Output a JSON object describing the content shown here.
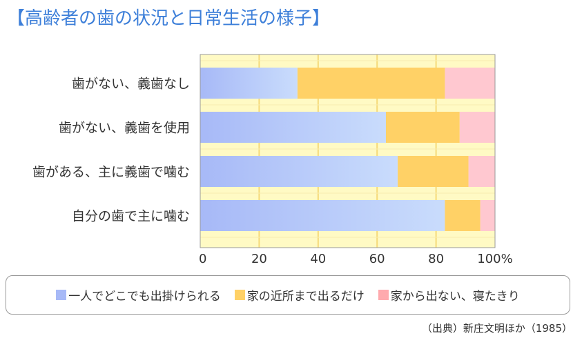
{
  "title": "【高齢者の歯の状況と日常生活の様子】",
  "source": "（出典）新庄文明ほか（1985）",
  "colors": {
    "series1_start": "#a7b9f7",
    "series1_end": "#c9dcfc",
    "series2": "#ffd166",
    "series3": "#ffc8d0",
    "plot_background": "#fffac4",
    "gridline": "#f5da7a",
    "plot_border": "#999999",
    "title": "#3d7fd9"
  },
  "chart_data": {
    "type": "bar",
    "orientation": "horizontal",
    "stacked": true,
    "percent": true,
    "categories": [
      "歯がない、義歯なし",
      "歯がない、義歯を使用",
      "歯がある、主に義歯で噛む",
      "自分の歯で主に噛む"
    ],
    "series": [
      {
        "name": "一人でどこでも出掛けられる",
        "values": [
          33,
          63,
          67,
          83
        ]
      },
      {
        "name": "家の近所まで出るだけ",
        "values": [
          50,
          25,
          24,
          12
        ]
      },
      {
        "name": "家から出ない、寝たきり",
        "values": [
          17,
          12,
          9,
          5
        ]
      }
    ],
    "xlim": [
      0,
      100
    ],
    "xticks": [
      "0",
      "20",
      "40",
      "60",
      "80",
      "100%"
    ],
    "grid": true,
    "legend_position": "bottom"
  }
}
